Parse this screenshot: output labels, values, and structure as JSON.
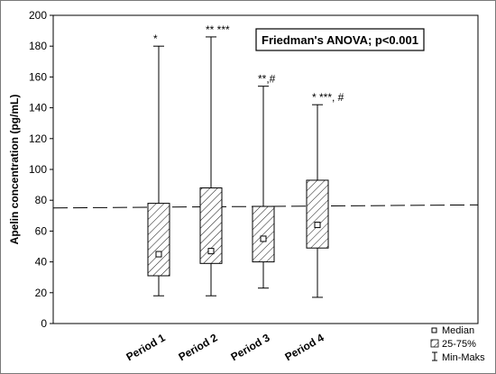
{
  "chart_data": {
    "type": "boxplot",
    "categories": [
      "Period 1",
      "Period 2",
      "Period 3",
      "Period 4"
    ],
    "ylabel": "Apelin concentration (pg/mL)",
    "ylim": [
      0,
      200
    ],
    "yticks": [
      0,
      20,
      40,
      60,
      80,
      100,
      120,
      140,
      160,
      180,
      200
    ],
    "boxes": [
      {
        "category": "Period 1",
        "min": 18,
        "q1": 31,
        "median": 45,
        "q3": 78,
        "max": 180,
        "annotation": "*"
      },
      {
        "category": "Period 2",
        "min": 18,
        "q1": 39,
        "median": 47,
        "q3": 88,
        "max": 186,
        "annotation": "** ***"
      },
      {
        "category": "Period 3",
        "min": 23,
        "q1": 40,
        "median": 55,
        "q3": 76,
        "max": 154,
        "annotation": "**,#"
      },
      {
        "category": "Period 4",
        "min": 17,
        "q1": 49,
        "median": 64,
        "q3": 93,
        "max": 142,
        "annotation": "* ***, #"
      }
    ],
    "reference_line": {
      "style": "dashed",
      "y_start": 75,
      "y_end": 77
    },
    "stat_box": "Friedman's ANOVA; p<0.001",
    "legend": {
      "position": "bottom-right",
      "items": [
        "Median",
        "25-75%",
        "Min-Maks"
      ]
    },
    "grid": false
  }
}
